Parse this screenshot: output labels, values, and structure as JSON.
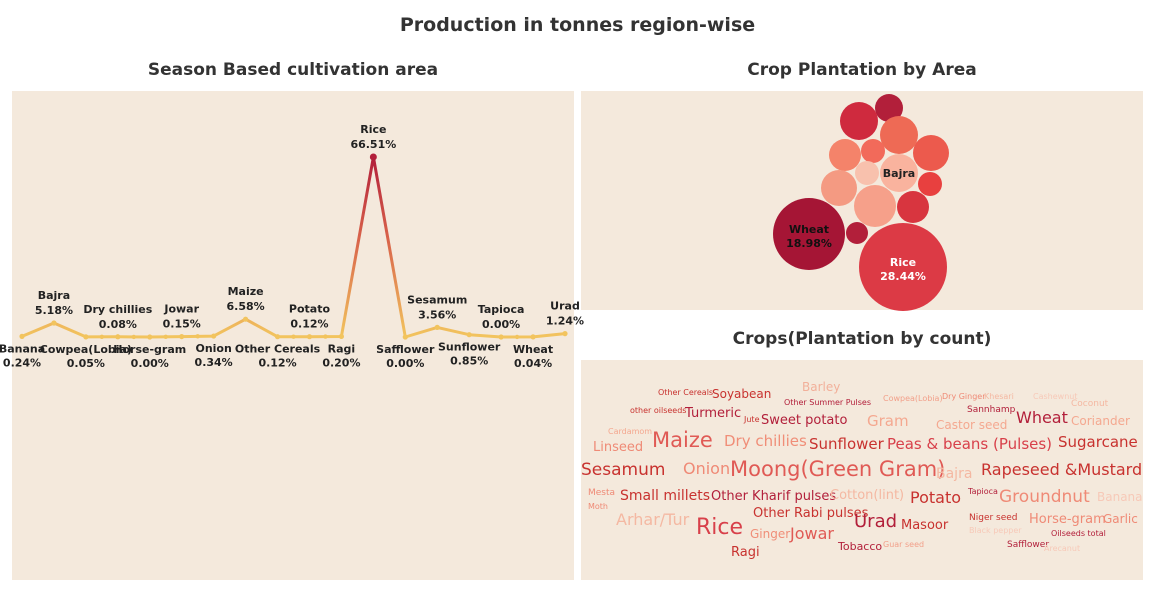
{
  "dashboard_title": "Production in tonnes region-wise",
  "left_chart": {
    "title": "Season Based cultivation area",
    "chart_data": {
      "type": "line",
      "categories": [
        "Banana",
        "Bajra",
        "Cowpea(Lobia)",
        "Dry chillies",
        "Horse-gram",
        "Jowar",
        "Onion",
        "Maize",
        "Other Cereals",
        "Potato",
        "Ragi",
        "Rice",
        "Safflower",
        "Sesamum",
        "Sunflower",
        "Tapioca",
        "Wheat",
        "Urad"
      ],
      "values": [
        0.24,
        5.18,
        0.05,
        0.08,
        0.0,
        0.15,
        0.34,
        6.58,
        0.12,
        0.12,
        0.2,
        66.51,
        0.0,
        3.56,
        0.85,
        0.0,
        0.04,
        1.24
      ],
      "labels": [
        "0.24%",
        "5.18%",
        "0.05%",
        "0.08%",
        "0.00%",
        "0.15%",
        "0.34%",
        "6.58%",
        "0.12%",
        "0.12%",
        "0.20%",
        "66.51%",
        "0.00%",
        "3.56%",
        "0.85%",
        "0.00%",
        "0.04%",
        "1.24%"
      ],
      "ylim": [
        0,
        70
      ]
    }
  },
  "bubble_chart": {
    "title": "Crop Plantation by Area",
    "chart_data": {
      "type": "bubble",
      "labeled": [
        {
          "name": "Rice",
          "label": "28.44%"
        },
        {
          "name": "Wheat",
          "label": "18.98%"
        },
        {
          "name": "Bajra",
          "label": ""
        }
      ]
    }
  },
  "word_cloud": {
    "title": "Crops(Plantation by count)",
    "words": [
      "Other Cereals",
      "Soyabean",
      "Barley",
      "Other Summer Pulses",
      "Cowpea(Lobia)",
      "Dry Ginger",
      "Khesari",
      "Cashewnut",
      "Coconut",
      "other oilseeds",
      "Turmeric",
      "Sannhamp",
      "Jute",
      "Sweet potato",
      "Gram",
      "Castor seed",
      "Wheat",
      "Coriander",
      "Cardamom",
      "Linseed",
      "Maize",
      "Dry chillies",
      "Sunflower",
      "Peas & beans (Pulses)",
      "Sugarcane",
      "Sesamum",
      "Onion",
      "Moong(Green Gram)",
      "Bajra",
      "Rapeseed &Mustard",
      "Mesta",
      "Small millets",
      "Other Kharif pulses",
      "Cotton(lint)",
      "Potato",
      "Tapioca",
      "Groundnut",
      "Banana",
      "Moth",
      "Arhar/Tur",
      "Rice",
      "Other Rabi pulses",
      "Urad",
      "Masoor",
      "Niger seed",
      "Horse-gram",
      "Garlic",
      "Ginger",
      "Jowar",
      "Black pepper",
      "Oilseeds total",
      "Ragi",
      "Tobacco",
      "Guar seed",
      "Safflower",
      "Arecanut"
    ]
  }
}
